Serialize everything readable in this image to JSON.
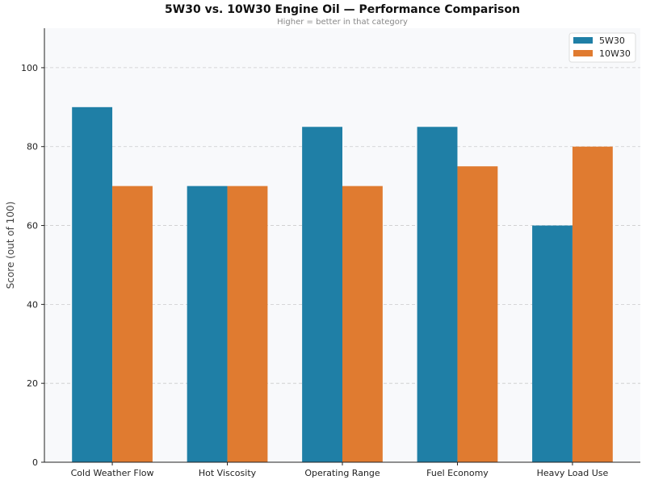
{
  "chart_data": {
    "type": "bar",
    "title": "5W30 vs. 10W30 Engine Oil — Performance Comparison",
    "subtitle": "Higher = better in that category",
    "xlabel": "",
    "ylabel": "Score (out of 100)",
    "ylim": [
      0,
      110
    ],
    "yticks": [
      0,
      20,
      40,
      60,
      80,
      100
    ],
    "grid": true,
    "legend_position": "top-right",
    "categories": [
      "Cold Weather Flow",
      "Hot Viscosity",
      "Operating Range",
      "Fuel Economy",
      "Heavy Load Use"
    ],
    "series": [
      {
        "name": "5W30",
        "color": "#1f7fa6",
        "values": [
          90,
          70,
          85,
          85,
          60
        ]
      },
      {
        "name": "10W30",
        "color": "#e07b30",
        "values": [
          70,
          70,
          70,
          75,
          80
        ]
      }
    ]
  }
}
